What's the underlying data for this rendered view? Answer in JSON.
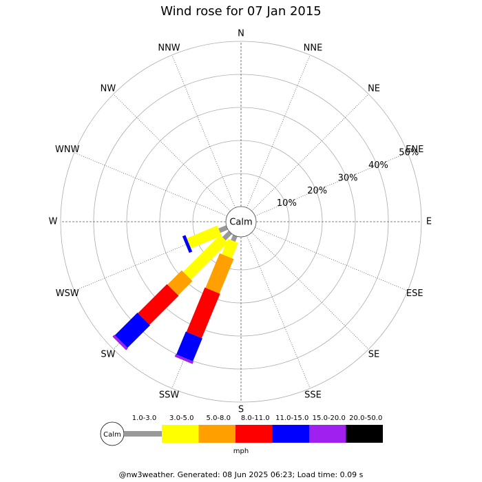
{
  "chart_data": {
    "type": "windrose",
    "title": "Wind rose for 07 Jan 2015",
    "directions": [
      "N",
      "NNE",
      "NE",
      "ENE",
      "E",
      "ESE",
      "SE",
      "SSE",
      "S",
      "SSW",
      "SW",
      "WSW",
      "W",
      "WNW",
      "NW",
      "NNW"
    ],
    "calm_label": "Calm",
    "rlim": [
      0,
      50
    ],
    "rticks": [
      {
        "value": 10,
        "label": "10%"
      },
      {
        "value": 20,
        "label": "20%"
      },
      {
        "value": 30,
        "label": "30%"
      },
      {
        "value": 40,
        "label": "40%"
      },
      {
        "value": 50,
        "label": "50%"
      }
    ],
    "unit": "mph",
    "series": [
      {
        "name": "1.0-3.0",
        "color": "#999999",
        "values": [
          null,
          null,
          null,
          null,
          null,
          null,
          null,
          null,
          null,
          1.7,
          2.7,
          2.5,
          null,
          null,
          null,
          null
        ]
      },
      {
        "name": "3.0-5.0",
        "color": "#ffff00",
        "values": [
          null,
          null,
          null,
          null,
          null,
          null,
          null,
          null,
          null,
          5,
          15.8,
          10,
          null,
          null,
          null,
          null
        ]
      },
      {
        "name": "5.0-8.0",
        "color": "#ffa000",
        "values": [
          null,
          null,
          null,
          null,
          null,
          null,
          null,
          null,
          null,
          11.3,
          6.1,
          0,
          null,
          null,
          null,
          null
        ]
      },
      {
        "name": "8.0-11.0",
        "color": "#ff0000",
        "values": [
          null,
          null,
          null,
          null,
          null,
          null,
          null,
          null,
          null,
          14.5,
          12.4,
          0,
          null,
          null,
          null,
          null
        ]
      },
      {
        "name": "11.0-15.0",
        "color": "#0000ff",
        "values": [
          null,
          null,
          null,
          null,
          null,
          null,
          null,
          null,
          null,
          7.5,
          9.7,
          1,
          null,
          null,
          null,
          null
        ]
      },
      {
        "name": "15.0-20.0",
        "color": "#a020f0",
        "values": [
          null,
          null,
          null,
          null,
          null,
          null,
          null,
          null,
          null,
          0.8,
          0.8,
          0,
          null,
          null,
          null,
          null
        ]
      },
      {
        "name": "20.0-50.0",
        "color": "#000000",
        "values": [
          null,
          null,
          null,
          null,
          null,
          null,
          null,
          null,
          null,
          0,
          0,
          0,
          null,
          null,
          null,
          null
        ]
      }
    ],
    "footer": "@nw3weather. Generated: 08 Jun 2025 06:23; Load time: 0.09 s"
  }
}
